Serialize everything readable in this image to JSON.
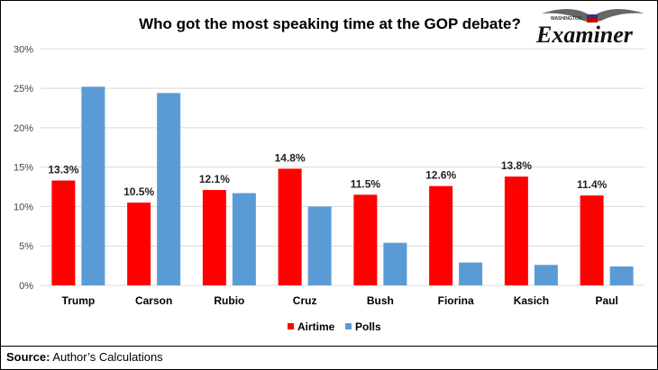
{
  "logo": {
    "top_text": "WASHINGTON",
    "name": "Examiner"
  },
  "source": {
    "label": "Source:",
    "text": "Author’s Calculations"
  },
  "colors": {
    "airtime": "#ff0000",
    "polls": "#5b9bd5",
    "grid": "#d9d9d9"
  },
  "chart_data": {
    "type": "bar",
    "title": "Who got the most speaking time at the GOP debate?",
    "categories": [
      "Trump",
      "Carson",
      "Rubio",
      "Cruz",
      "Bush",
      "Fiorina",
      "Kasich",
      "Paul"
    ],
    "series": [
      {
        "name": "Airtime",
        "values": [
          13.3,
          10.5,
          12.1,
          14.8,
          11.5,
          12.6,
          13.8,
          11.4
        ],
        "labels": [
          "13.3%",
          "10.5%",
          "12.1%",
          "14.8%",
          "11.5%",
          "12.6%",
          "13.8%",
          "11.4%"
        ]
      },
      {
        "name": "Polls",
        "values": [
          25.2,
          24.4,
          11.7,
          10.0,
          5.4,
          2.9,
          2.6,
          2.4
        ]
      }
    ],
    "yticks": [
      "0%",
      "5%",
      "10%",
      "15%",
      "20%",
      "25%",
      "30%"
    ],
    "ylim": [
      0,
      30
    ],
    "grid": true,
    "legend": "bottom",
    "xlabel": "",
    "ylabel": ""
  }
}
